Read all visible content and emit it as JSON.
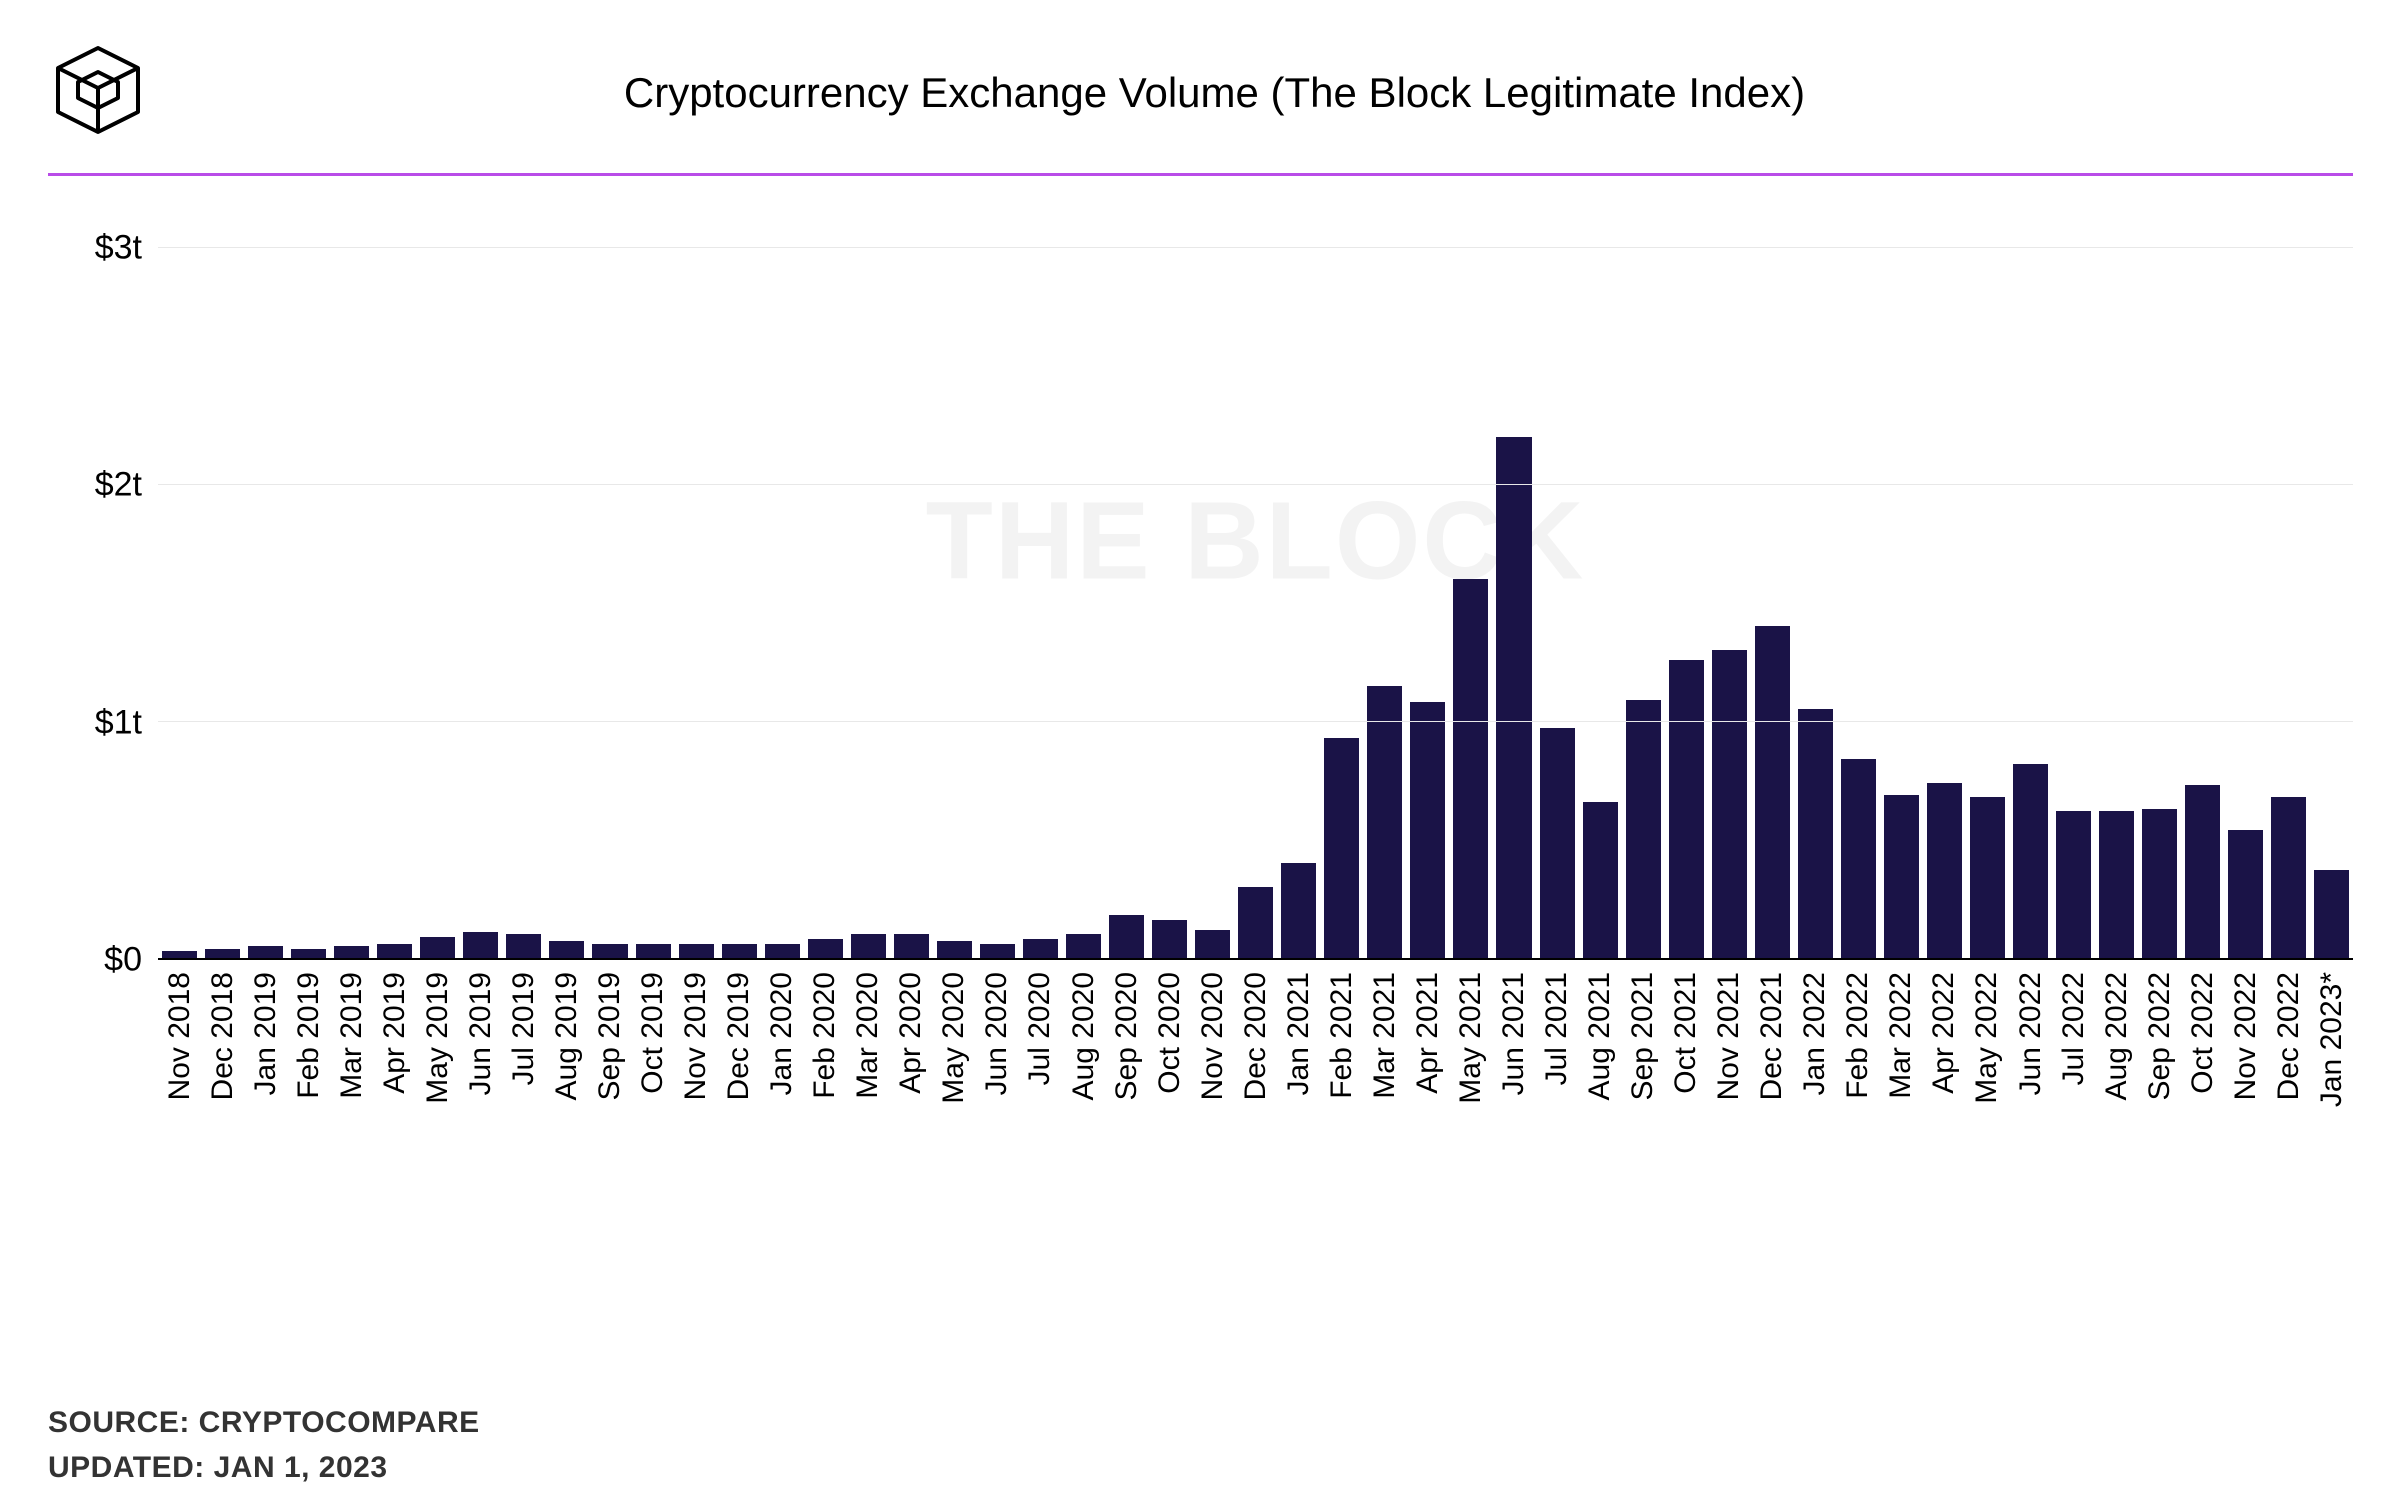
{
  "title": "Cryptocurrency Exchange Volume (The Block Legitimate Index)",
  "watermark": "THE BLOCK",
  "source_label": "SOURCE: CRYPTOCOMPARE",
  "updated_label": "UPDATED: JAN 1, 2023",
  "divider_color": "#b94ce8",
  "chart": {
    "type": "bar",
    "bar_color": "#1a1347",
    "background_color": "#ffffff",
    "grid_color": "#e8e8e8",
    "axis_color": "#000000",
    "y": {
      "min": 0,
      "max": 3.2,
      "ticks": [
        {
          "value": 0,
          "label": "$0"
        },
        {
          "value": 1,
          "label": "$1t"
        },
        {
          "value": 2,
          "label": "$2t"
        },
        {
          "value": 3,
          "label": "$3t"
        }
      ],
      "tick_fontsize": 34
    },
    "x_label_fontsize": 30,
    "categories": [
      "Nov 2018",
      "Dec 2018",
      "Jan 2019",
      "Feb 2019",
      "Mar 2019",
      "Apr 2019",
      "May 2019",
      "Jun 2019",
      "Jul 2019",
      "Aug 2019",
      "Sep 2019",
      "Oct 2019",
      "Nov 2019",
      "Dec 2019",
      "Jan 2020",
      "Feb 2020",
      "Mar 2020",
      "Apr 2020",
      "May 2020",
      "Jun 2020",
      "Jul 2020",
      "Aug 2020",
      "Sep 2020",
      "Oct 2020",
      "Nov 2020",
      "Dec 2020",
      "Jan 2021",
      "Feb 2021",
      "Mar 2021",
      "Apr 2021",
      "May 2021",
      "Jun 2021",
      "Jul 2021",
      "Aug 2021",
      "Sep 2021",
      "Oct 2021",
      "Nov 2021",
      "Dec 2021",
      "Jan 2022",
      "Feb 2022",
      "Mar 2022",
      "Apr 2022",
      "May 2022",
      "Jun 2022",
      "Jul 2022",
      "Aug 2022",
      "Sep 2022",
      "Oct 2022",
      "Nov 2022",
      "Dec 2022",
      "Jan 2023*"
    ],
    "values": [
      0.03,
      0.04,
      0.05,
      0.04,
      0.05,
      0.06,
      0.09,
      0.11,
      0.1,
      0.07,
      0.06,
      0.06,
      0.06,
      0.06,
      0.06,
      0.08,
      0.1,
      0.1,
      0.07,
      0.06,
      0.08,
      0.1,
      0.18,
      0.16,
      0.12,
      0.3,
      0.4,
      0.93,
      1.15,
      1.08,
      1.6,
      2.2,
      0.97,
      0.66,
      1.09,
      1.26,
      1.3,
      1.4,
      1.05,
      0.84,
      0.69,
      0.74,
      0.68,
      0.82,
      0.62,
      0.62,
      0.63,
      0.73,
      0.54,
      0.68,
      0.37
    ]
  }
}
